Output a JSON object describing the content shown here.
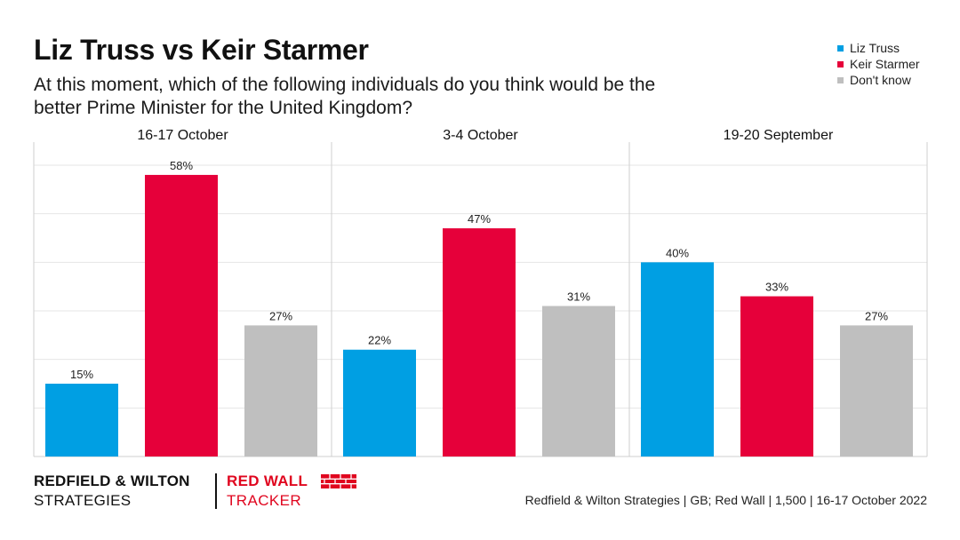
{
  "title": "Liz Truss vs Keir Starmer",
  "subtitle": "At this moment, which of the following individuals do you think would be the better Prime Minister for the United Kingdom?",
  "legend": [
    {
      "label": "Liz Truss",
      "color": "#009fe3"
    },
    {
      "label": "Keir Starmer",
      "color": "#e6003a"
    },
    {
      "label": "Don't know",
      "color": "#bfbfbf"
    }
  ],
  "chart_data": {
    "type": "bar",
    "title": "Liz Truss vs Keir Starmer",
    "xlabel": "",
    "ylabel": "",
    "ylim": [
      0,
      60
    ],
    "grid": true,
    "legend_position": "top-right",
    "groups": [
      "16-17 October",
      "3-4 October",
      "19-20 September"
    ],
    "series": [
      {
        "name": "Liz Truss",
        "color": "#009fe3",
        "values": [
          15,
          22,
          40
        ],
        "labels": [
          "15%",
          "22%",
          "40%"
        ]
      },
      {
        "name": "Keir Starmer",
        "color": "#e6003a",
        "values": [
          58,
          47,
          33
        ],
        "labels": [
          "58%",
          "47%",
          "33%"
        ]
      },
      {
        "name": "Don't know",
        "color": "#bfbfbf",
        "values": [
          27,
          31,
          27
        ],
        "labels": [
          "27%",
          "31%",
          "27%"
        ]
      }
    ]
  },
  "footer": {
    "brand_line1": "REDFIELD & WILTON",
    "brand_line2": "STRATEGIES",
    "tracker_line1": "RED WALL",
    "tracker_line2": "TRACKER",
    "source": "Redfield & Wilton Strategies | GB; Red Wall | 1,500 | 16-17 October 2022"
  }
}
